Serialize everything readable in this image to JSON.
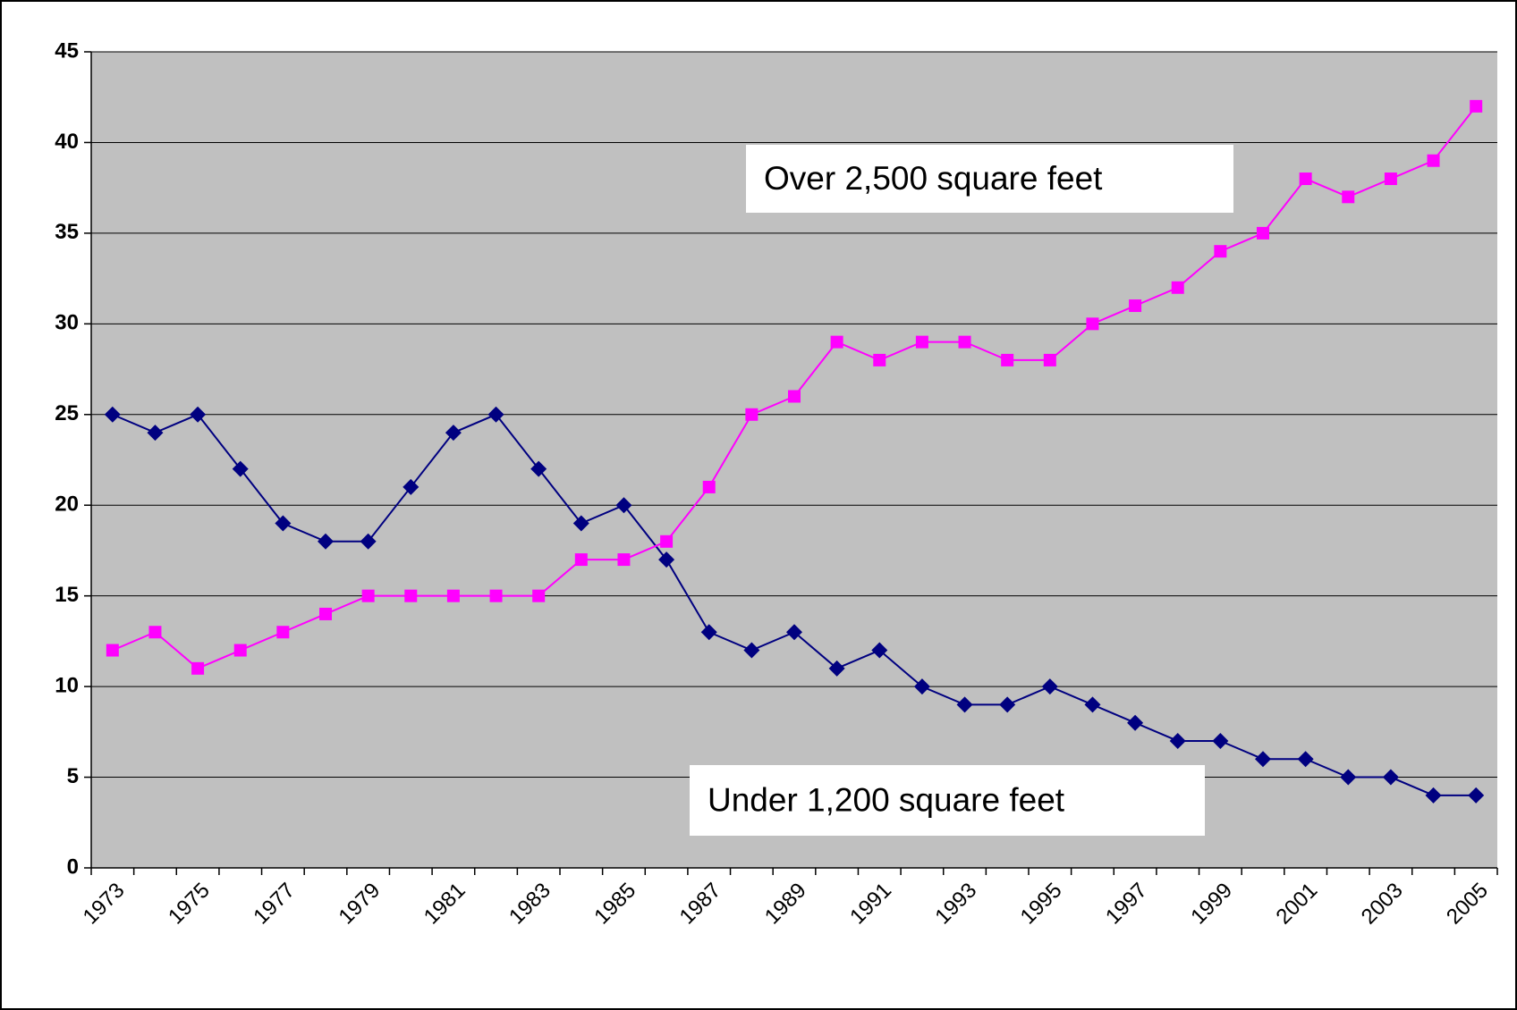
{
  "chart_data": {
    "type": "line",
    "categories": [
      "1973",
      null,
      "1975",
      null,
      "1977",
      null,
      "1979",
      null,
      "1981",
      null,
      "1983",
      null,
      "1985",
      null,
      "1987",
      null,
      "1989",
      null,
      "1991",
      null,
      "1993",
      null,
      "1995",
      null,
      "1997",
      null,
      "1999",
      null,
      "2001",
      null,
      "2003",
      null,
      "2005"
    ],
    "series": [
      {
        "name": "Under 1,200 square feet",
        "color": "#000080",
        "marker": "diamond",
        "values": [
          25,
          24,
          25,
          22,
          19,
          18,
          18,
          21,
          24,
          25,
          22,
          19,
          20,
          17,
          13,
          12,
          13,
          11,
          12,
          10,
          9,
          9,
          10,
          9,
          8,
          7,
          7,
          6,
          6,
          5,
          5,
          4,
          4
        ]
      },
      {
        "name": "Over 2,500 square feet",
        "color": "#ff00ff",
        "marker": "square",
        "values": [
          12,
          13,
          11,
          12,
          13,
          14,
          15,
          15,
          15,
          15,
          15,
          17,
          17,
          18,
          21,
          25,
          26,
          29,
          28,
          29,
          29,
          28,
          28,
          30,
          31,
          32,
          34,
          35,
          38,
          37,
          38,
          39,
          42
        ]
      }
    ],
    "ylim": [
      0,
      45
    ],
    "yticks": [
      0,
      5,
      10,
      15,
      20,
      25,
      30,
      35,
      40,
      45
    ],
    "grid": true,
    "plot_background": "#c0c0c0"
  }
}
